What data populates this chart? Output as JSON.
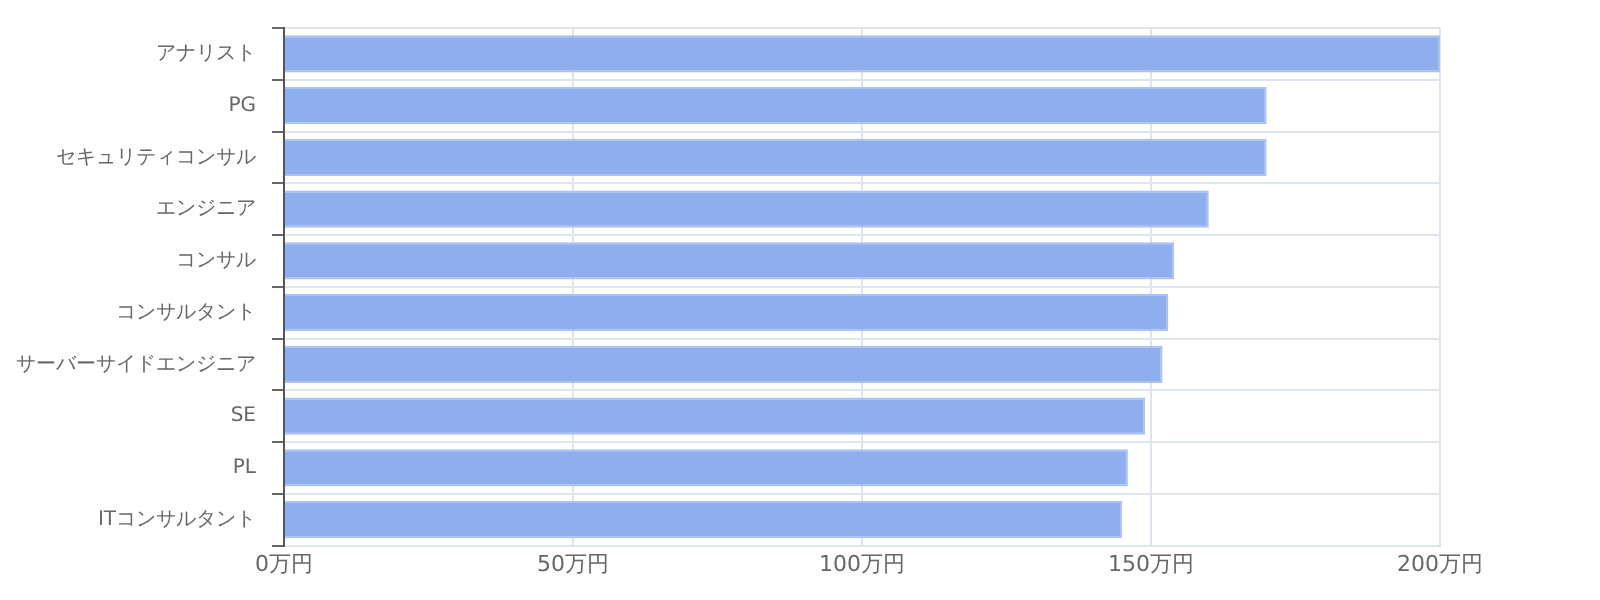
{
  "chart_data": {
    "type": "bar",
    "orientation": "horizontal",
    "categories": [
      "アナリスト",
      "PG",
      "セキュリティコンサル",
      "エンジニア",
      "コンサル",
      "コンサルタント",
      "サーバーサイドエンジニア",
      "SE",
      "PL",
      "ITコンサルタント"
    ],
    "values": [
      200,
      170,
      170,
      160,
      154,
      153,
      152,
      149,
      146,
      145
    ],
    "color": "#8eaeee",
    "xlim": [
      0,
      200
    ],
    "xticks": [
      {
        "value": 0,
        "label": "0万円"
      },
      {
        "value": 50,
        "label": "50万円"
      },
      {
        "value": 100,
        "label": "100万円"
      },
      {
        "value": 150,
        "label": "150万円"
      },
      {
        "value": 200,
        "label": "200万円"
      }
    ],
    "grid": true
  }
}
